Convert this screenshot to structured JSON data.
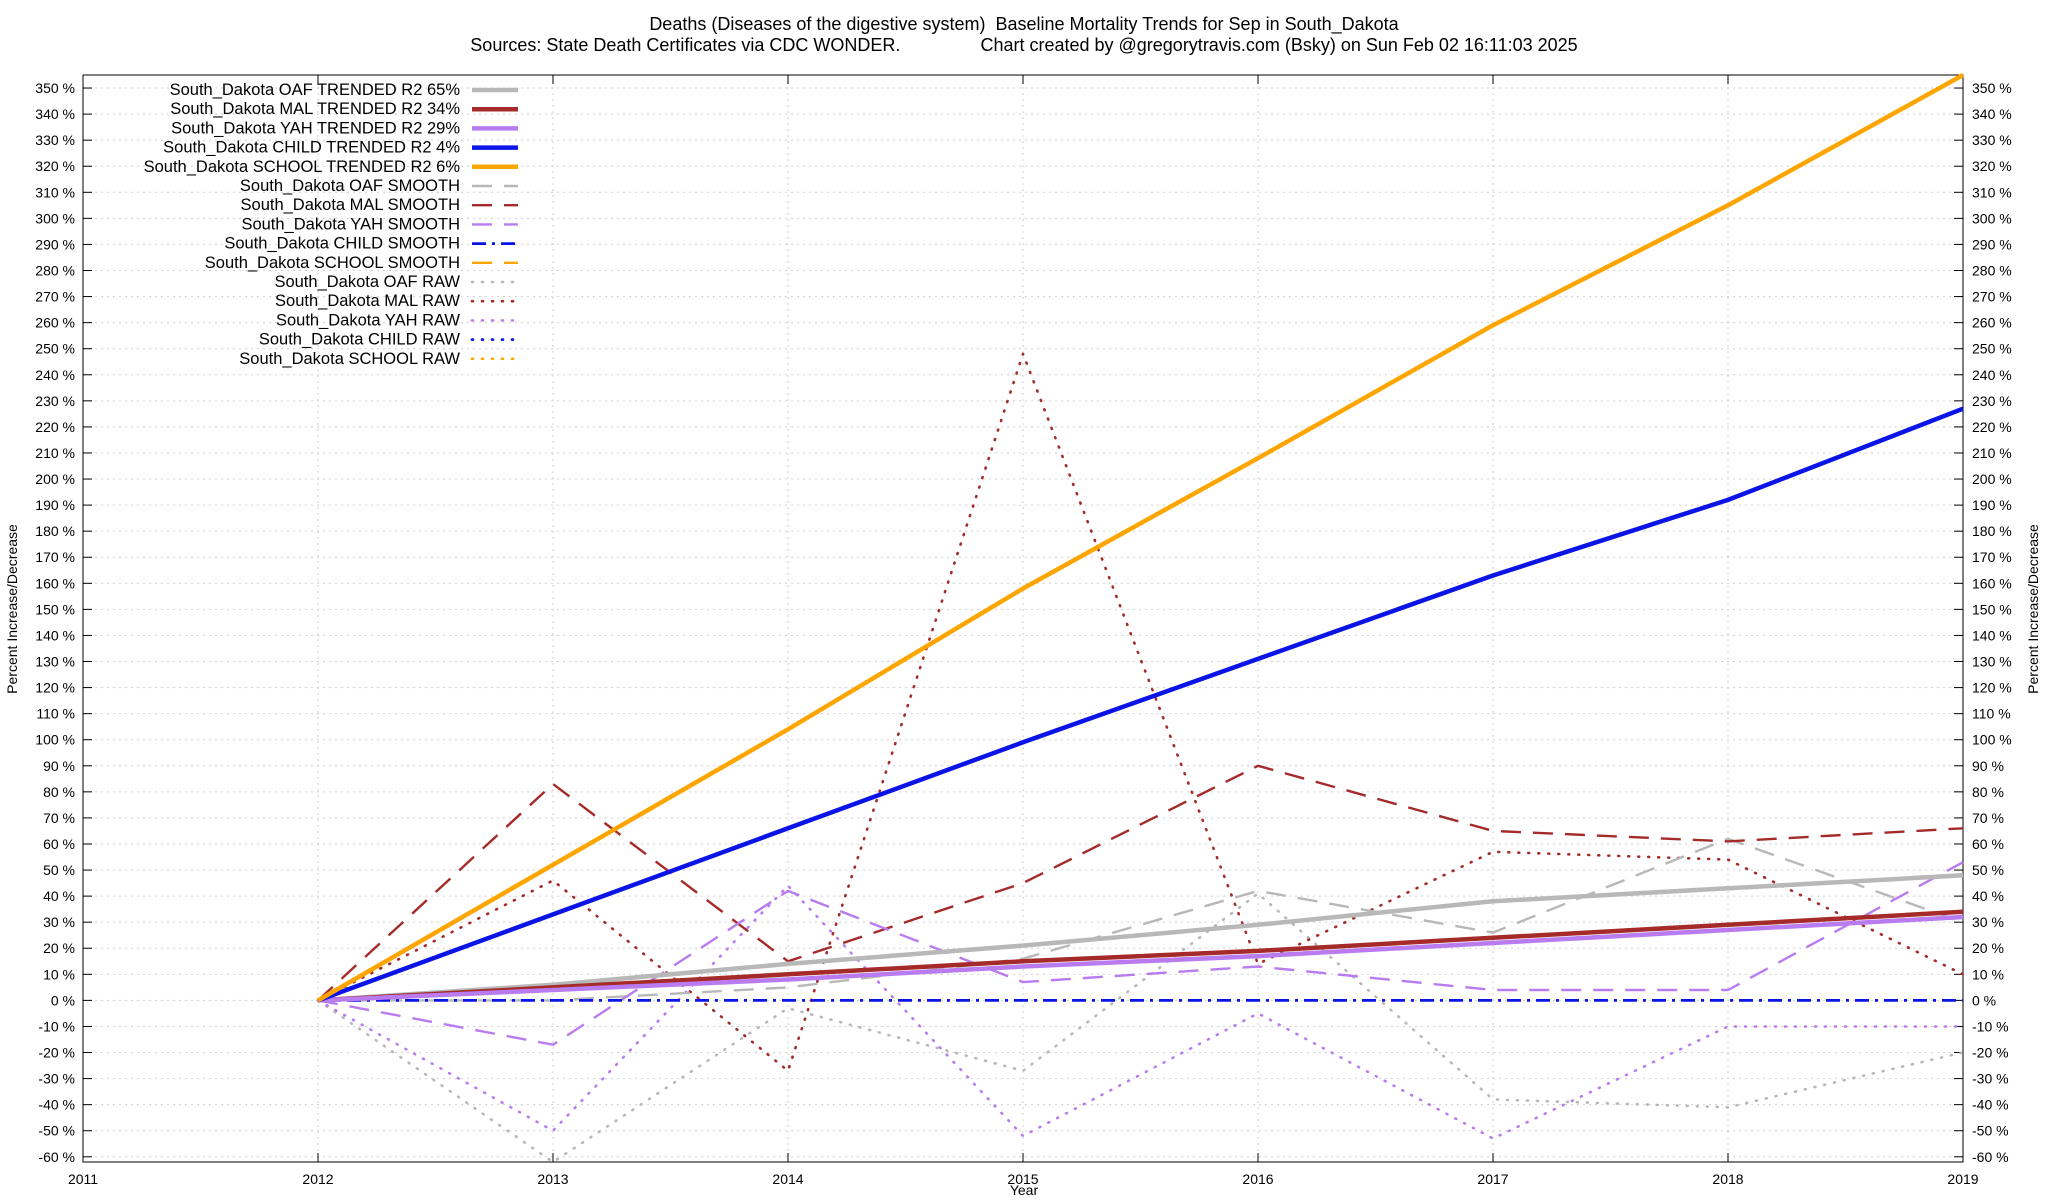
{
  "chart_data": {
    "type": "line",
    "title": "Deaths (Diseases of the digestive system)  Baseline Mortality Trends for Sep in South_Dakota",
    "subtitle": "Sources: State Death Certificates via CDC WONDER.                Chart created by @gregorytravis.com (Bsky) on Sun Feb 02 16:11:03 2025",
    "xlabel": "Year",
    "ylabel": "Percent Increase/Decrease",
    "y2label": "Percent Increase/Decrease",
    "xlim": [
      2011,
      2019
    ],
    "ylim": [
      -62,
      355
    ],
    "x_ticks": [
      2011,
      2012,
      2013,
      2014,
      2015,
      2016,
      2017,
      2018,
      2019
    ],
    "y_ticks": [
      -60,
      -50,
      -40,
      -30,
      -20,
      -10,
      0,
      10,
      20,
      30,
      40,
      50,
      60,
      70,
      80,
      90,
      100,
      110,
      120,
      130,
      140,
      150,
      160,
      170,
      180,
      190,
      200,
      210,
      220,
      230,
      240,
      250,
      260,
      270,
      280,
      290,
      300,
      310,
      320,
      330,
      340,
      350
    ],
    "y_tick_suffix": " %",
    "grid": true,
    "legend_position": "top-left",
    "colors": {
      "oaf": "#b8b8b8",
      "mal": "#a52a2a",
      "yah": "#b97cf0",
      "child": "#0a14e6",
      "school": "#ffa500"
    },
    "series": [
      {
        "name": "South_Dakota OAF TRENDED R2  65%",
        "group": "oaf",
        "style": "trended",
        "x": [
          2012,
          2013,
          2014,
          2015,
          2016,
          2017,
          2018,
          2019
        ],
        "y": [
          0,
          6,
          14,
          21,
          29,
          38,
          43,
          48
        ]
      },
      {
        "name": "South_Dakota MAL TRENDED R2  34%",
        "group": "mal",
        "style": "trended",
        "x": [
          2012,
          2013,
          2014,
          2015,
          2016,
          2017,
          2018,
          2019
        ],
        "y": [
          0,
          5,
          10,
          15,
          19,
          24,
          29,
          34
        ]
      },
      {
        "name": "South_Dakota YAH TRENDED R2  29%",
        "group": "yah",
        "style": "trended",
        "x": [
          2012,
          2013,
          2014,
          2015,
          2016,
          2017,
          2018,
          2019
        ],
        "y": [
          0,
          4,
          8,
          13,
          17,
          22,
          27,
          32
        ]
      },
      {
        "name": "South_Dakota CHILD TRENDED R2   4%",
        "group": "child",
        "style": "trended",
        "x": [
          2012,
          2013,
          2014,
          2015,
          2016,
          2017,
          2018,
          2019
        ],
        "y": [
          0,
          33,
          66,
          99,
          131,
          163,
          192,
          227
        ]
      },
      {
        "name": "South_Dakota SCHOOL TRENDED R2   6%",
        "group": "school",
        "style": "trended",
        "x": [
          2012,
          2013,
          2014,
          2015,
          2016,
          2017,
          2018,
          2019
        ],
        "y": [
          0,
          52,
          104,
          158,
          208,
          259,
          305,
          355
        ]
      },
      {
        "name": "South_Dakota OAF SMOOTH",
        "group": "oaf",
        "style": "smooth",
        "x": [
          2012,
          2013,
          2014,
          2015,
          2016,
          2017,
          2018,
          2019
        ],
        "y": [
          0,
          0,
          5,
          16,
          42,
          26,
          62,
          30
        ]
      },
      {
        "name": "South_Dakota MAL SMOOTH",
        "group": "mal",
        "style": "smooth",
        "x": [
          2012,
          2013,
          2014,
          2015,
          2016,
          2017,
          2018,
          2019
        ],
        "y": [
          0,
          83,
          15,
          45,
          90,
          65,
          61,
          66
        ]
      },
      {
        "name": "South_Dakota YAH SMOOTH",
        "group": "yah",
        "style": "smooth",
        "x": [
          2012,
          2013,
          2014,
          2015,
          2016,
          2017,
          2018,
          2019
        ],
        "y": [
          0,
          -17,
          42,
          7,
          13,
          4,
          4,
          53
        ]
      },
      {
        "name": "South_Dakota CHILD SMOOTH",
        "group": "child",
        "style": "smooth",
        "x": [
          2012,
          2013,
          2014,
          2015,
          2016,
          2017,
          2018,
          2019
        ],
        "y": [
          0,
          0,
          0,
          0,
          0,
          0,
          0,
          0
        ]
      },
      {
        "name": "South_Dakota SCHOOL SMOOTH",
        "group": "school",
        "style": "smooth",
        "x": [],
        "y": []
      },
      {
        "name": "South_Dakota OAF RAW",
        "group": "oaf",
        "style": "raw",
        "x": [
          2012,
          2013,
          2014,
          2015,
          2016,
          2017,
          2018,
          2019
        ],
        "y": [
          0,
          -62,
          -3,
          -27,
          41,
          -38,
          -41,
          -20
        ]
      },
      {
        "name": "South_Dakota MAL RAW",
        "group": "mal",
        "style": "raw",
        "x": [
          2012,
          2013,
          2014,
          2015,
          2016,
          2017,
          2018,
          2019
        ],
        "y": [
          0,
          46,
          -27,
          248,
          14,
          57,
          54,
          10
        ]
      },
      {
        "name": "South_Dakota YAH RAW",
        "group": "yah",
        "style": "raw",
        "x": [
          2012,
          2013,
          2014,
          2015,
          2016,
          2017,
          2018,
          2019
        ],
        "y": [
          0,
          -50,
          44,
          -52,
          -5,
          -53,
          -10,
          -10
        ]
      },
      {
        "name": "South_Dakota CHILD RAW",
        "group": "child",
        "style": "raw",
        "x": [],
        "y": []
      },
      {
        "name": "South_Dakota SCHOOL RAW",
        "group": "school",
        "style": "raw",
        "x": [],
        "y": []
      }
    ]
  }
}
